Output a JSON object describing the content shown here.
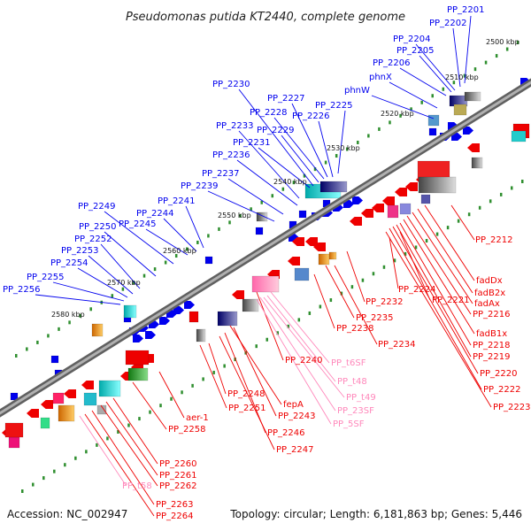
{
  "title": "Pseudomonas putida KT2440, complete genome",
  "footer": {
    "accession": "Accession: NC_002947",
    "summary": "Topology: circular; Length: 6,181,863 bp; Genes: 5,446"
  },
  "colors": {
    "forward_strand": "#0000ee",
    "reverse_strand": "#ee0000",
    "rna": "#ff88bb",
    "tick": "#2f8f2f",
    "backbone": "#808080"
  },
  "kbp_labels": [
    "2500 kbp",
    "2510 kbp",
    "2520 kbp",
    "2530 kbp",
    "2540 kbp",
    "2550 kbp",
    "2560 kbp",
    "2570 kbp",
    "2580 kbp"
  ],
  "blue_labels": [
    "PP_2201",
    "PP_2202",
    "PP_2204",
    "PP_2205",
    "PP_2206",
    "phnX",
    "phnW",
    "PP_2225",
    "PP_2226",
    "PP_2227",
    "PP_2228",
    "PP_2229",
    "PP_2230",
    "PP_2231",
    "PP_2233",
    "PP_2236",
    "PP_2237",
    "PP_2239",
    "PP_2241",
    "PP_2244",
    "PP_2245",
    "PP_2249",
    "PP_2250",
    "PP_2252",
    "PP_2253",
    "PP_2254",
    "PP_2255",
    "PP_2256"
  ],
  "red_labels": [
    "PP_2212",
    "fadDx",
    "fadB2x",
    "fadAx",
    "PP_2216",
    "fadB1x",
    "PP_2218",
    "PP_2219",
    "PP_2220",
    "PP_2221",
    "PP_2222",
    "PP_2223",
    "PP_2224",
    "PP_2232",
    "PP_2235",
    "PP_2234",
    "PP_2238",
    "PP_2240",
    "PP_2243",
    "PP_2246",
    "PP_2247",
    "PP_2248",
    "fepA",
    "PP_2251",
    "aer-1",
    "PP_2258",
    "PP_2260",
    "PP_2261",
    "PP_2262",
    "PP_2263",
    "PP_2264"
  ],
  "pink_labels": [
    "PP_t6SF",
    "PP_t48",
    "PP_t49",
    "PP_23SF",
    "PP_5SF",
    "PP_t58"
  ]
}
